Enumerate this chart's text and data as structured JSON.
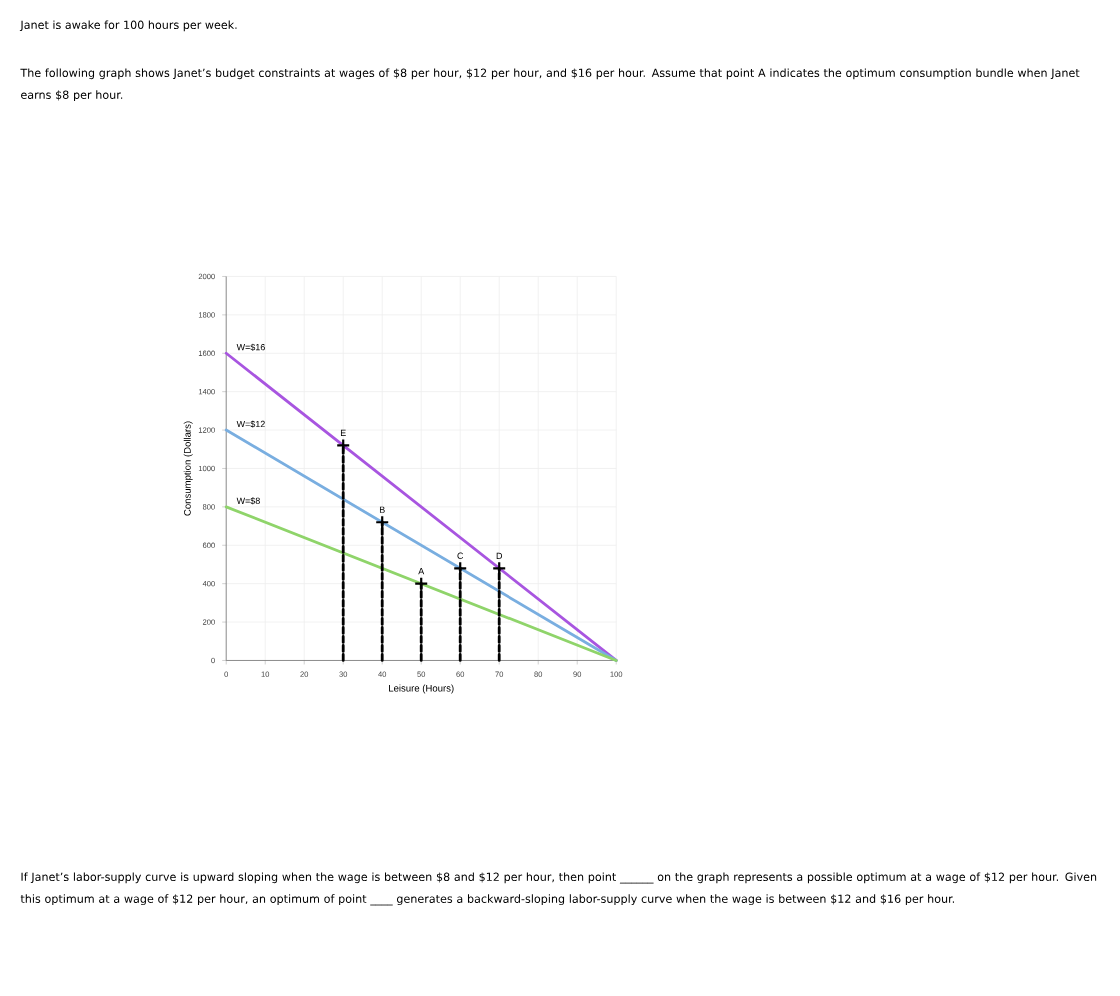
{
  "chart_data": {
    "type": "line",
    "title": "Janet is awake for 100 hours per week.",
    "subtitle": "The following graph shows Janet’s budget constraints at wages of $8 per hour, $12 per hour, and $16 per hour. Assume that point A indicates the optimum consumption bundle when Janet earns $8 per hour.",
    "xlabel": "Leisure (Hours)",
    "ylabel": "Consumption (Dollars)",
    "xlim": [
      0,
      100
    ],
    "ylim": [
      0,
      2000
    ],
    "xticks": [
      0,
      10,
      20,
      30,
      40,
      50,
      60,
      70,
      80,
      90,
      100
    ],
    "yticks": [
      0,
      200,
      400,
      600,
      800,
      1000,
      1200,
      1400,
      1600,
      1800,
      2000
    ],
    "grid": true,
    "series": [
      {
        "name": "W=$16",
        "color": "#a855e0",
        "x": [
          0,
          100
        ],
        "values": [
          1600,
          0
        ]
      },
      {
        "name": "W=$12",
        "color": "#79aee0",
        "x": [
          0,
          100
        ],
        "values": [
          1200,
          0
        ]
      },
      {
        "name": "W=$8",
        "color": "#8fd46a",
        "x": [
          0,
          100
        ],
        "values": [
          800,
          0
        ]
      },
      {
        "color": "#000000",
        "line_style": "dashed",
        "x": [
          30,
          30
        ],
        "values": [
          0,
          1120
        ]
      },
      {
        "color": "#000000",
        "line_style": "dashed",
        "x": [
          40,
          40
        ],
        "values": [
          0,
          720
        ]
      },
      {
        "color": "#000000",
        "line_style": "dashed",
        "x": [
          50,
          50
        ],
        "values": [
          0,
          400
        ]
      },
      {
        "color": "#000000",
        "line_style": "dashed",
        "x": [
          60,
          60
        ],
        "values": [
          0,
          480
        ]
      },
      {
        "color": "#000000",
        "line_style": "dashed",
        "x": [
          70,
          70
        ],
        "values": [
          0,
          480
        ]
      },
      {
        "type": "scatter",
        "color": "#000000",
        "marker": "cross",
        "x": [
          30,
          40,
          50,
          60,
          70
        ],
        "values": [
          1120,
          720,
          400,
          480,
          480
        ]
      }
    ],
    "annotations": [
      {
        "text": "E",
        "x": 30,
        "y": 1120
      },
      {
        "text": "B",
        "x": 40,
        "y": 720
      },
      {
        "text": "A",
        "x": 50,
        "y": 400
      },
      {
        "text": "C",
        "x": 60,
        "y": 480
      },
      {
        "text": "D",
        "x": 70,
        "y": 480
      },
      "If Janet’s labor-supply curve is upward sloping when the wage is between $8 and $12 per hour, then point ______ on the graph represents a possible optimum at a wage of $12 per hour. Given this optimum at a wage of $12 per hour, an optimum of point ____ generates a backward-sloping labor-supply curve when the wage is between $12 and $16 per hour."
    ]
  }
}
